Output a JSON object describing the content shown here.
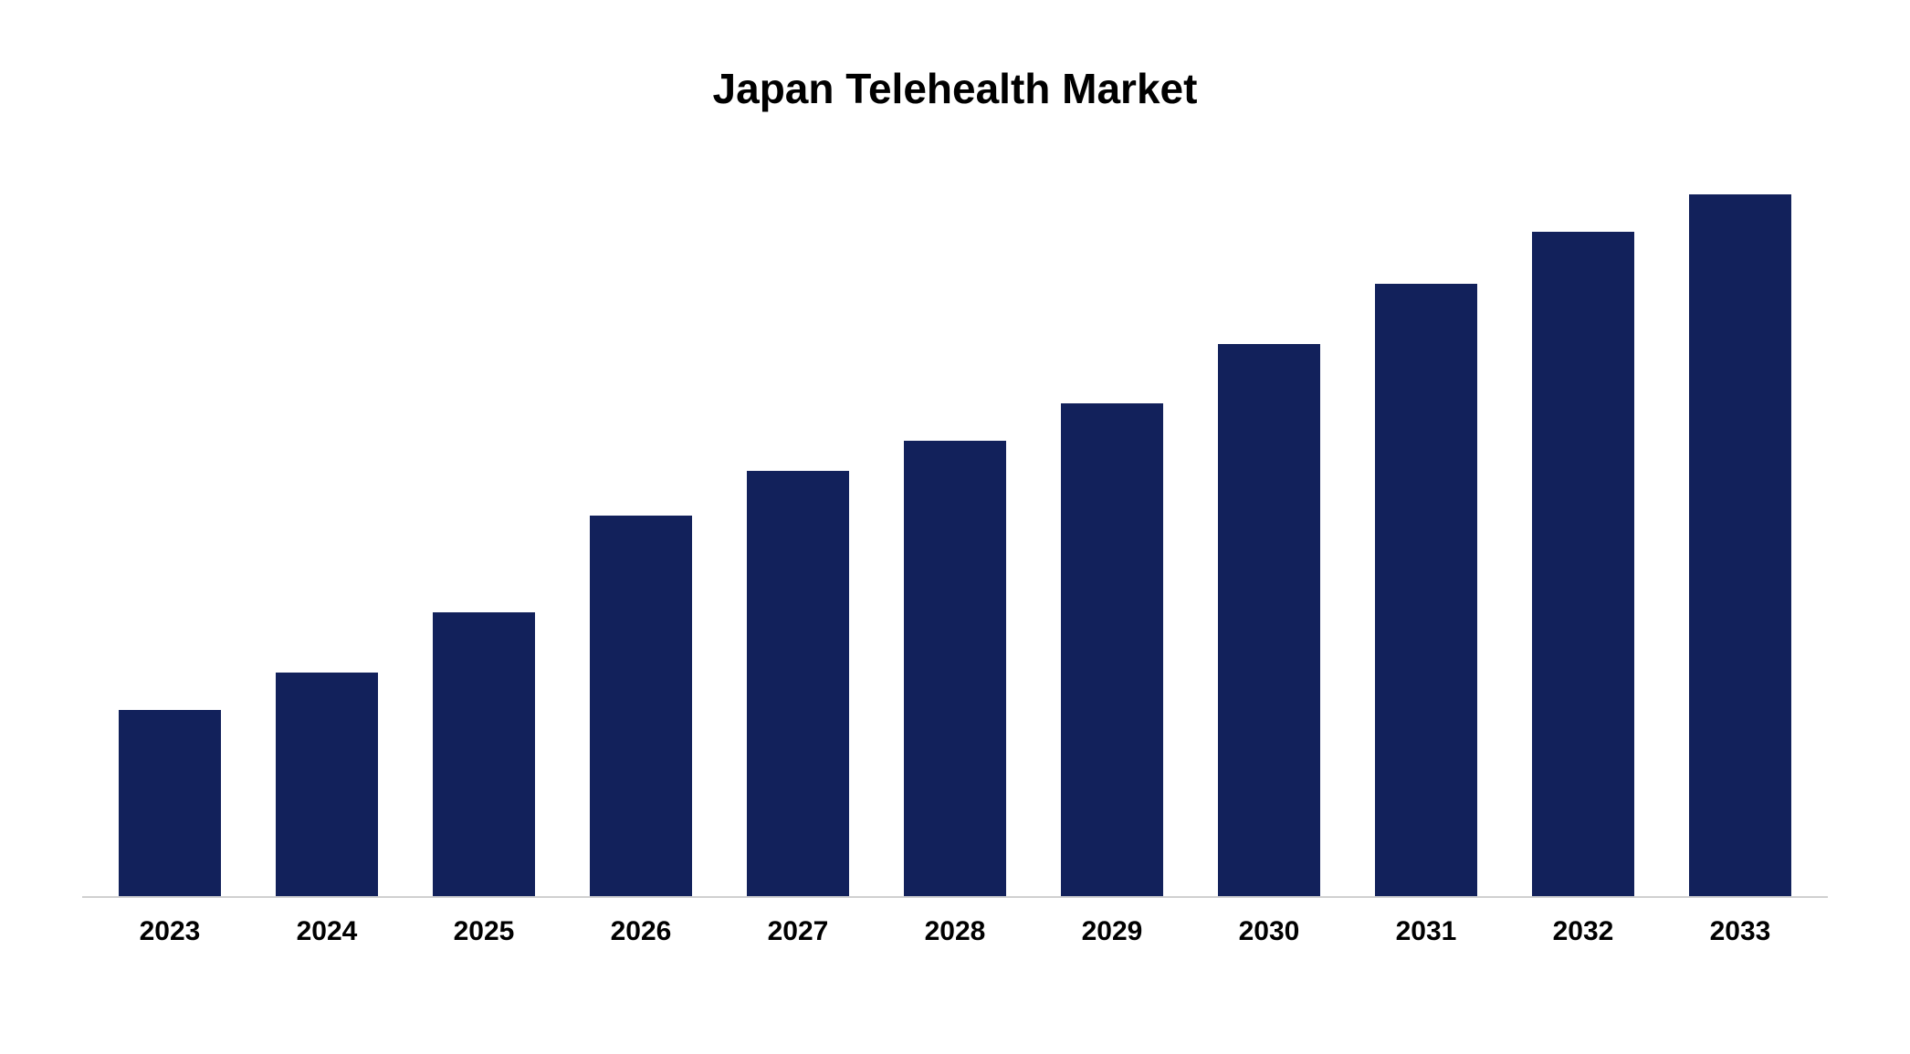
{
  "chart": {
    "type": "bar",
    "title": "Japan Telehealth Market",
    "title_fontsize": 46,
    "title_fontweight": 700,
    "title_color": "#000000",
    "categories": [
      "2023",
      "2024",
      "2025",
      "2026",
      "2027",
      "2028",
      "2029",
      "2030",
      "2031",
      "2032",
      "2033"
    ],
    "values": [
      25,
      30,
      38,
      51,
      57,
      61,
      66,
      74,
      82,
      89,
      94
    ],
    "bar_color": "#12215b",
    "background_color": "#ffffff",
    "axis_line_color": "#d0d0d0",
    "xlabel_fontsize": 30,
    "xlabel_fontweight": 700,
    "xlabel_color": "#000000",
    "ylim": [
      0,
      100
    ],
    "bar_width_ratio": 0.65
  }
}
